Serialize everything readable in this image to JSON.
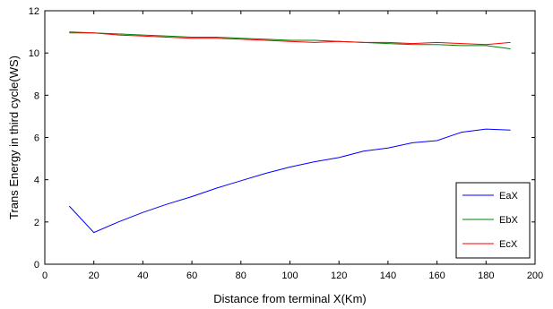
{
  "chart_data": {
    "type": "line",
    "xlabel": "Distance from terminal X(Km)",
    "ylabel": "Trans Energy in third cycle(WS)",
    "xlim": [
      0,
      200
    ],
    "ylim": [
      0,
      12
    ],
    "xticks": [
      0,
      20,
      40,
      60,
      80,
      100,
      120,
      140,
      160,
      180,
      200
    ],
    "yticks": [
      0,
      2,
      4,
      6,
      8,
      10,
      12
    ],
    "grid": false,
    "legend_position": "bottom-right",
    "series": [
      {
        "name": "EaX",
        "color": "#0000ff",
        "x": [
          10,
          20,
          30,
          40,
          50,
          60,
          70,
          80,
          90,
          100,
          110,
          120,
          130,
          140,
          150,
          160,
          170,
          180,
          190
        ],
        "y": [
          2.75,
          1.5,
          2.0,
          2.45,
          2.85,
          3.2,
          3.6,
          3.95,
          4.3,
          4.6,
          4.85,
          5.05,
          5.35,
          5.5,
          5.75,
          5.85,
          6.25,
          6.4,
          6.35
        ]
      },
      {
        "name": "EbX",
        "color": "#008000",
        "x": [
          10,
          20,
          30,
          40,
          50,
          60,
          70,
          80,
          90,
          100,
          110,
          120,
          130,
          140,
          150,
          160,
          170,
          180,
          190
        ],
        "y": [
          10.95,
          10.95,
          10.9,
          10.85,
          10.8,
          10.75,
          10.75,
          10.7,
          10.65,
          10.6,
          10.6,
          10.55,
          10.5,
          10.45,
          10.4,
          10.4,
          10.35,
          10.35,
          10.2
        ]
      },
      {
        "name": "EcX",
        "color": "#ff0000",
        "x": [
          10,
          20,
          30,
          40,
          50,
          60,
          70,
          80,
          90,
          100,
          110,
          120,
          130,
          140,
          150,
          160,
          170,
          180,
          190
        ],
        "y": [
          11.0,
          10.95,
          10.85,
          10.8,
          10.75,
          10.7,
          10.7,
          10.65,
          10.6,
          10.55,
          10.5,
          10.55,
          10.5,
          10.5,
          10.45,
          10.5,
          10.45,
          10.4,
          10.5
        ]
      }
    ]
  }
}
